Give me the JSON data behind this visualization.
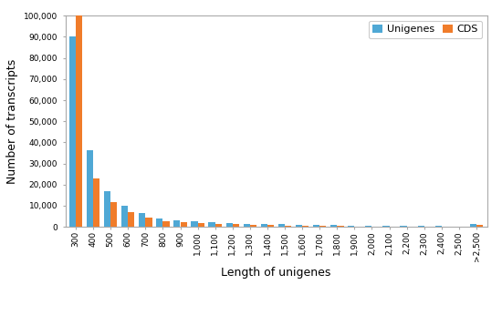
{
  "categories": [
    "300",
    "400",
    "500",
    "600",
    "700",
    "800",
    "900",
    "1,000",
    "1,100",
    "1,200",
    "1,300",
    "1,400",
    "1,500",
    "1,600",
    "1,700",
    "1,800",
    "1,900",
    "2,000",
    "2,100",
    "2,200",
    "2,300",
    "2,400",
    "2,500",
    ">2,500"
  ],
  "unigenes": [
    90000,
    36500,
    17000,
    10000,
    6500,
    4000,
    3000,
    2500,
    2000,
    1800,
    1500,
    1300,
    1200,
    1000,
    900,
    700,
    600,
    500,
    450,
    400,
    350,
    300,
    250,
    1200
  ],
  "cds": [
    100000,
    23000,
    11500,
    7000,
    4500,
    2800,
    2200,
    1800,
    1500,
    1200,
    1000,
    800,
    600,
    500,
    400,
    300,
    250,
    200,
    180,
    160,
    140,
    120,
    100,
    800
  ],
  "unigenes_color": "#4fa8d5",
  "cds_color": "#f07c2a",
  "xlabel": "Length of unigenes",
  "ylabel": "Number of transcripts",
  "ylim": [
    0,
    100000
  ],
  "yticks": [
    0,
    10000,
    20000,
    30000,
    40000,
    50000,
    60000,
    70000,
    80000,
    90000,
    100000
  ],
  "legend_labels": [
    "Unigenes",
    "CDS"
  ],
  "background_color": "#ffffff",
  "title_fontsize": 9,
  "axis_fontsize": 8,
  "tick_fontsize": 6.5
}
